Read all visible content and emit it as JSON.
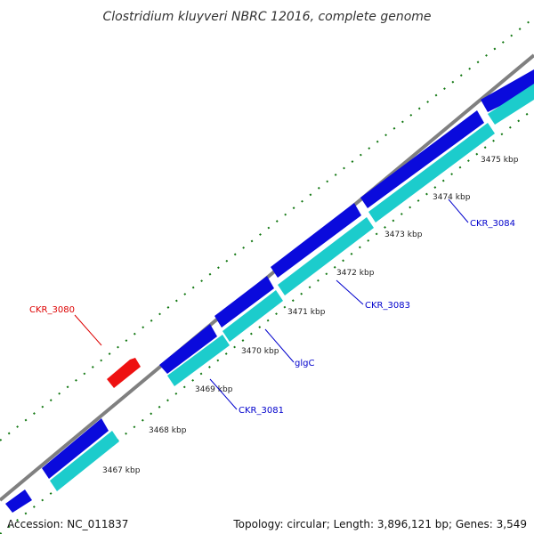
{
  "title": "Clostridium kluyveri NBRC 12016, complete genome",
  "footer": {
    "accession": "Accession: NC_011837",
    "summary": "Topology: circular; Length: 3,896,121 bp; Genes: 3,549"
  },
  "colors": {
    "backbone": "#808080",
    "forward_gene": "#0a0adc",
    "reverse_gene": "#1ccccc",
    "highlight_gene": "#ee1111",
    "tick": "#117711",
    "label_blue": "#0000cc",
    "label_red": "#dd0000"
  },
  "ticks": [
    "3467 kbp",
    "3468 kbp",
    "3469 kbp",
    "3470 kbp",
    "3471 kbp",
    "3472 kbp",
    "3473 kbp",
    "3474 kbp",
    "3475 kbp"
  ],
  "genes": [
    {
      "name": "CKR_3080",
      "strand": "reverse",
      "color": "highlight_gene",
      "labeled": true
    },
    {
      "name": "CKR_3081",
      "strand": "forward",
      "labeled": true
    },
    {
      "name": "glgC",
      "strand": "forward",
      "labeled": true
    },
    {
      "name": "CKR_3083",
      "strand": "forward",
      "labeled": true
    },
    {
      "name": "CKR_3084",
      "strand": "forward",
      "labeled": true
    }
  ]
}
